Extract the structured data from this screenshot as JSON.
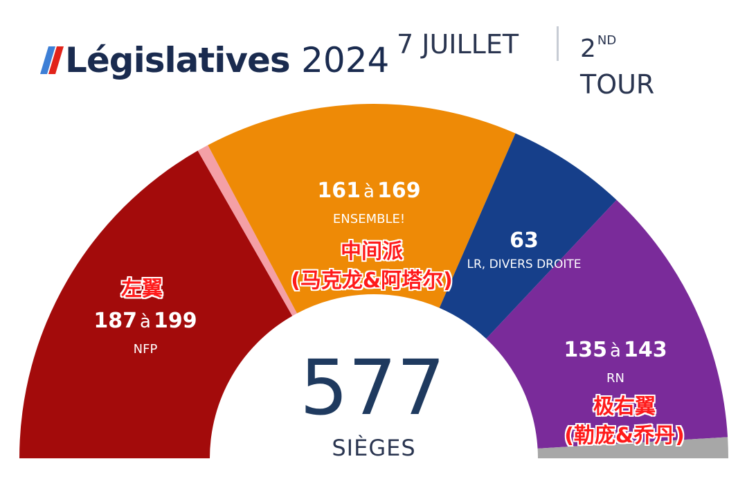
{
  "header": {
    "logo_text": "Législatives",
    "logo_year": "2024",
    "date": "7 JUILLET",
    "round_ordinal": "2",
    "round_sup": "ND",
    "round_word": "TOUR"
  },
  "chart_data": {
    "type": "pie",
    "subtype": "hemicycle",
    "total_seats": 577,
    "total_label": "577",
    "seats_label": "SIÈGES",
    "connector": "à",
    "series": [
      {
        "name": "NFP",
        "min": 187,
        "max": 199,
        "color": "#a30b0b",
        "annotation": [
          "左翼"
        ]
      },
      {
        "name": "",
        "min": 6,
        "max": 6,
        "color": "#f4a0a6",
        "annotation": []
      },
      {
        "name": "ENSEMBLE!",
        "min": 161,
        "max": 169,
        "color": "#ee8a06",
        "annotation": [
          "中间派",
          "(马克龙&阿塔尔)"
        ]
      },
      {
        "name": "LR, DIVERS DROITE",
        "min": 63,
        "max": 63,
        "color": "#163f8a",
        "annotation": []
      },
      {
        "name": "RN",
        "min": 135,
        "max": 143,
        "color": "#7a2b9a",
        "annotation": [
          "极右翼",
          "(勒庞&乔丹)"
        ]
      }
    ],
    "remainder_color": "#a7a7a7"
  }
}
